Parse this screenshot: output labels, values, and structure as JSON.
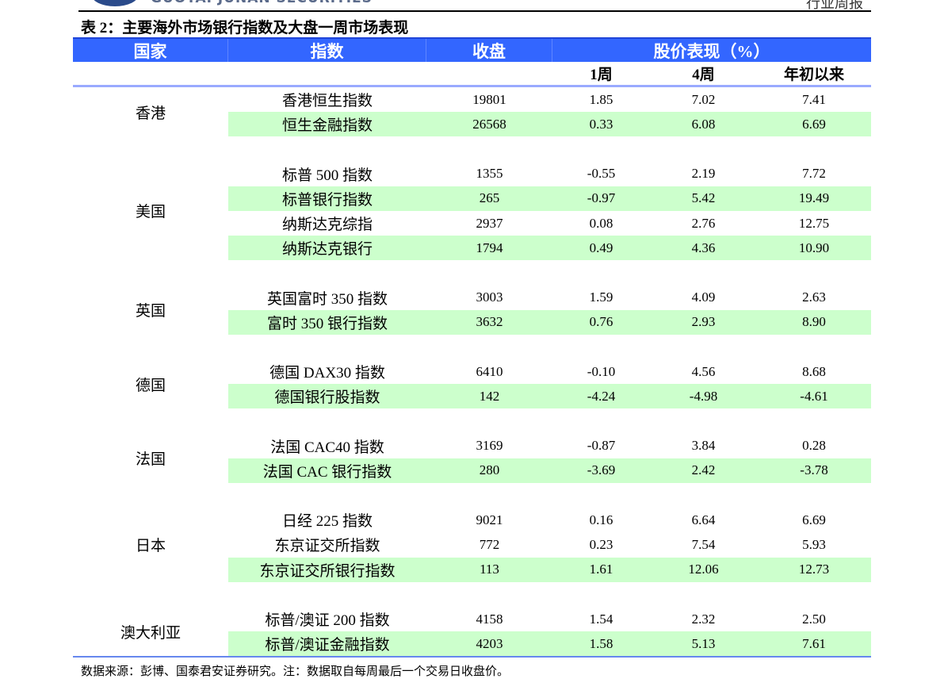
{
  "page_header": {
    "company": "GUOTAI JUNAN SECURITIES",
    "report_type": "行业周报"
  },
  "title": "表 2：主要海外市场银行指数及大盘一周市场表现",
  "table": {
    "headers": [
      "国家",
      "指数",
      "收盘",
      "股价表现（%）"
    ],
    "subheaders": [
      "1周",
      "4周",
      "年初以来"
    ],
    "groups": [
      {
        "country": "香港",
        "rows": [
          {
            "index": "香港恒生指数",
            "close": "19801",
            "w1": "1.85",
            "w4": "7.02",
            "ytd": "7.41",
            "highlight": false
          },
          {
            "index": "恒生金融指数",
            "close": "26568",
            "w1": "0.33",
            "w4": "6.08",
            "ytd": "6.69",
            "highlight": true
          }
        ]
      },
      {
        "country": "美国",
        "rows": [
          {
            "index": "标普 500 指数",
            "close": "1355",
            "w1": "-0.55",
            "w4": "2.19",
            "ytd": "7.72",
            "highlight": false
          },
          {
            "index": "标普银行指数",
            "close": "265",
            "w1": "-0.97",
            "w4": "5.42",
            "ytd": "19.49",
            "highlight": true
          },
          {
            "index": "纳斯达克综指",
            "close": "2937",
            "w1": "0.08",
            "w4": "2.76",
            "ytd": "12.75",
            "highlight": false
          },
          {
            "index": "纳斯达克银行",
            "close": "1794",
            "w1": "0.49",
            "w4": "4.36",
            "ytd": "10.90",
            "highlight": true
          }
        ]
      },
      {
        "country": "英国",
        "rows": [
          {
            "index": "英国富时 350 指数",
            "close": "3003",
            "w1": "1.59",
            "w4": "4.09",
            "ytd": "2.63",
            "highlight": false
          },
          {
            "index": "富时 350 银行指数",
            "close": "3632",
            "w1": "0.76",
            "w4": "2.93",
            "ytd": "8.90",
            "highlight": true
          }
        ]
      },
      {
        "country": "德国",
        "rows": [
          {
            "index": "德国 DAX30 指数",
            "close": "6410",
            "w1": "-0.10",
            "w4": "4.56",
            "ytd": "8.68",
            "highlight": false
          },
          {
            "index": "德国银行股指数",
            "close": "142",
            "w1": "-4.24",
            "w4": "-4.98",
            "ytd": "-4.61",
            "highlight": true
          }
        ]
      },
      {
        "country": "法国",
        "rows": [
          {
            "index": "法国 CAC40 指数",
            "close": "3169",
            "w1": "-0.87",
            "w4": "3.84",
            "ytd": "0.28",
            "highlight": false
          },
          {
            "index": "法国 CAC 银行指数",
            "close": "280",
            "w1": "-3.69",
            "w4": "2.42",
            "ytd": "-3.78",
            "highlight": true
          }
        ]
      },
      {
        "country": "日本",
        "rows": [
          {
            "index": "日经 225 指数",
            "close": "9021",
            "w1": "0.16",
            "w4": "6.64",
            "ytd": "6.69",
            "highlight": false
          },
          {
            "index": "东京证交所指数",
            "close": "772",
            "w1": "0.23",
            "w4": "7.54",
            "ytd": "5.93",
            "highlight": false
          },
          {
            "index": "东京证交所银行指数",
            "close": "113",
            "w1": "1.61",
            "w4": "12.06",
            "ytd": "12.73",
            "highlight": true
          }
        ]
      },
      {
        "country": "澳大利亚",
        "rows": [
          {
            "index": "标普/澳证 200 指数",
            "close": "4158",
            "w1": "1.54",
            "w4": "2.32",
            "ytd": "2.50",
            "highlight": false
          },
          {
            "index": "标普/澳证金融指数",
            "close": "4203",
            "w1": "1.58",
            "w4": "5.13",
            "ytd": "7.61",
            "highlight": true
          }
        ]
      }
    ]
  },
  "source": "数据来源：彭博、国泰君安证券研究。注：数据取自每周最后一个交易日收盘价。",
  "colors": {
    "header_bg": "#3366ff",
    "highlight_row": "#ccffcc",
    "rule": "#6688ee"
  }
}
